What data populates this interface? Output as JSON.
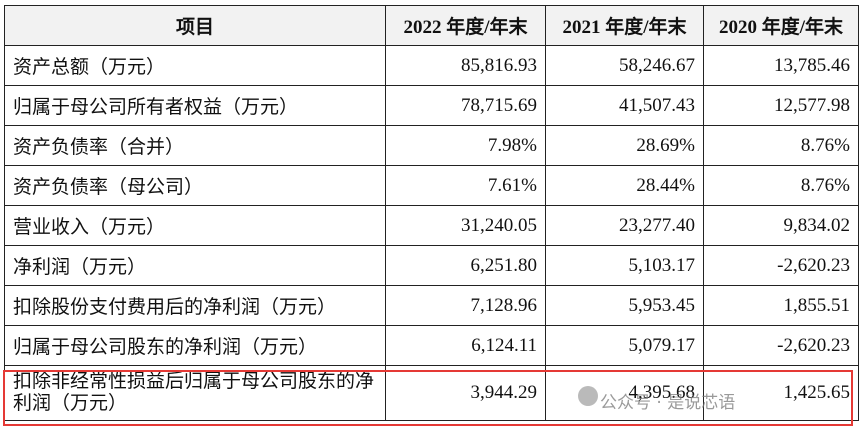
{
  "table": {
    "header": [
      "项目",
      "2022 年度/年末",
      "2021 年度/年末",
      "2020 年度/年末"
    ],
    "rows": [
      [
        "资产总额（万元）",
        "85,816.93",
        "58,246.67",
        "13,785.46"
      ],
      [
        "归属于母公司所有者权益（万元）",
        "78,715.69",
        "41,507.43",
        "12,577.98"
      ],
      [
        "资产负债率（合并）",
        "7.98%",
        "28.69%",
        "8.76%"
      ],
      [
        "资产负债率（母公司）",
        "7.61%",
        "28.44%",
        "8.76%"
      ],
      [
        "营业收入（万元）",
        "31,240.05",
        "23,277.40",
        "9,834.02"
      ],
      [
        "净利润（万元）",
        "6,251.80",
        "5,103.17",
        "-2,620.23"
      ],
      [
        "扣除股份支付费用后的净利润（万元）",
        "7,128.96",
        "5,953.45",
        "1,855.51"
      ],
      [
        "归属于母公司股东的净利润（万元）",
        "6,124.11",
        "5,079.17",
        "-2,620.23"
      ],
      [
        "扣除非经常性损益后归属于母公司股东的净利润（万元）",
        "3,944.29",
        "4,395.68",
        "1,425.65"
      ]
    ]
  },
  "watermark": "公众号 · 是说芯语"
}
